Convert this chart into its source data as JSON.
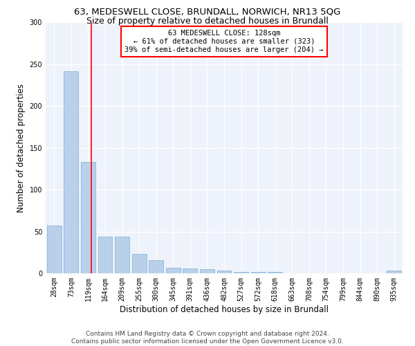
{
  "title": "63, MEDESWELL CLOSE, BRUNDALL, NORWICH, NR13 5QG",
  "subtitle": "Size of property relative to detached houses in Brundall",
  "xlabel": "Distribution of detached houses by size in Brundall",
  "ylabel": "Number of detached properties",
  "bar_labels": [
    "28sqm",
    "73sqm",
    "119sqm",
    "164sqm",
    "209sqm",
    "255sqm",
    "300sqm",
    "345sqm",
    "391sqm",
    "436sqm",
    "482sqm",
    "527sqm",
    "572sqm",
    "618sqm",
    "663sqm",
    "708sqm",
    "754sqm",
    "799sqm",
    "844sqm",
    "890sqm",
    "935sqm"
  ],
  "bar_values": [
    57,
    242,
    133,
    44,
    44,
    23,
    16,
    7,
    6,
    5,
    3,
    2,
    2,
    2,
    0,
    0,
    0,
    0,
    0,
    0,
    3
  ],
  "bar_color": "#b8d0ea",
  "bar_edge_color": "#7bafd4",
  "vline_color": "red",
  "annotation_text": "63 MEDESWELL CLOSE: 128sqm\n← 61% of detached houses are smaller (323)\n39% of semi-detached houses are larger (204) →",
  "annotation_box_color": "white",
  "annotation_box_edge": "red",
  "ylim": [
    0,
    300
  ],
  "yticks": [
    0,
    50,
    100,
    150,
    200,
    250,
    300
  ],
  "footer": "Contains HM Land Registry data © Crown copyright and database right 2024.\nContains public sector information licensed under the Open Government Licence v3.0.",
  "title_fontsize": 9.5,
  "subtitle_fontsize": 9,
  "tick_fontsize": 7,
  "ylabel_fontsize": 8.5,
  "xlabel_fontsize": 8.5,
  "footer_fontsize": 6.5
}
